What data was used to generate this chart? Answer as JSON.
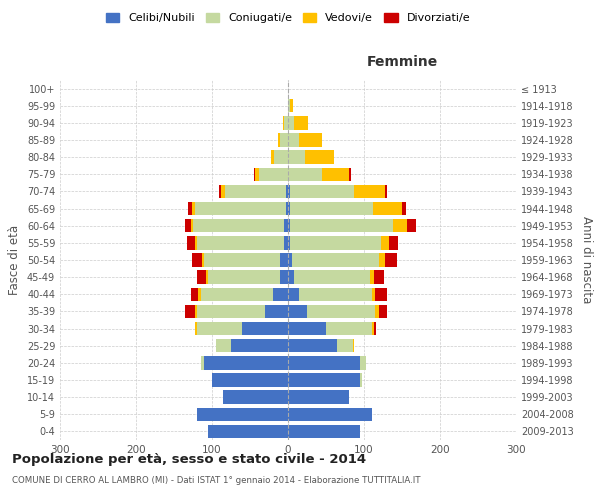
{
  "age_groups": [
    "0-4",
    "5-9",
    "10-14",
    "15-19",
    "20-24",
    "25-29",
    "30-34",
    "35-39",
    "40-44",
    "45-49",
    "50-54",
    "55-59",
    "60-64",
    "65-69",
    "70-74",
    "75-79",
    "80-84",
    "85-89",
    "90-94",
    "95-99",
    "100+"
  ],
  "years": [
    "2009-2013",
    "2004-2008",
    "1999-2003",
    "1994-1998",
    "1989-1993",
    "1984-1988",
    "1979-1983",
    "1974-1978",
    "1969-1973",
    "1964-1968",
    "1959-1963",
    "1954-1958",
    "1949-1953",
    "1944-1948",
    "1939-1943",
    "1934-1938",
    "1929-1933",
    "1924-1928",
    "1919-1923",
    "1914-1918",
    "≤ 1913"
  ],
  "male": {
    "celibe": [
      105,
      120,
      85,
      100,
      110,
      75,
      60,
      30,
      20,
      10,
      10,
      5,
      5,
      3,
      3,
      0,
      0,
      0,
      0,
      0,
      0
    ],
    "coniugato": [
      0,
      0,
      0,
      0,
      5,
      20,
      60,
      90,
      95,
      95,
      100,
      115,
      120,
      120,
      80,
      38,
      18,
      10,
      5,
      0,
      0
    ],
    "vedovo": [
      0,
      0,
      0,
      0,
      0,
      0,
      3,
      3,
      3,
      3,
      3,
      3,
      3,
      3,
      5,
      5,
      5,
      3,
      2,
      0,
      0
    ],
    "divorziato": [
      0,
      0,
      0,
      0,
      0,
      0,
      0,
      12,
      10,
      12,
      13,
      10,
      8,
      5,
      3,
      2,
      0,
      0,
      0,
      0,
      0
    ]
  },
  "female": {
    "nubile": [
      95,
      110,
      80,
      95,
      95,
      65,
      50,
      25,
      15,
      8,
      5,
      3,
      3,
      2,
      2,
      0,
      0,
      0,
      0,
      0,
      0
    ],
    "coniugata": [
      0,
      0,
      0,
      3,
      8,
      20,
      60,
      90,
      95,
      100,
      115,
      120,
      135,
      110,
      85,
      45,
      22,
      15,
      8,
      2,
      0
    ],
    "vedova": [
      0,
      0,
      0,
      0,
      0,
      2,
      3,
      5,
      5,
      5,
      8,
      10,
      18,
      38,
      40,
      35,
      38,
      30,
      18,
      5,
      0
    ],
    "divorziata": [
      0,
      0,
      0,
      0,
      0,
      0,
      3,
      10,
      15,
      13,
      15,
      12,
      13,
      5,
      3,
      3,
      0,
      0,
      0,
      0,
      0
    ]
  },
  "colors": {
    "celibe": "#4472c4",
    "coniugato": "#c5d9a0",
    "vedovo": "#ffc000",
    "divorziato": "#cc0000"
  },
  "xlim": 300,
  "title": "Popolazione per età, sesso e stato civile - 2014",
  "subtitle": "COMUNE DI CERRO AL LAMBRO (MI) - Dati ISTAT 1° gennaio 2014 - Elaborazione TUTTITALIA.IT",
  "ylabel_left": "Fasce di età",
  "ylabel_right": "Anni di nascita",
  "xlabel_female": "Femmine",
  "legend_labels": [
    "Celibi/Nubili",
    "Coniugati/e",
    "Vedovi/e",
    "Divorziati/e"
  ],
  "bg_color": "#ffffff",
  "grid_color": "#cccccc"
}
